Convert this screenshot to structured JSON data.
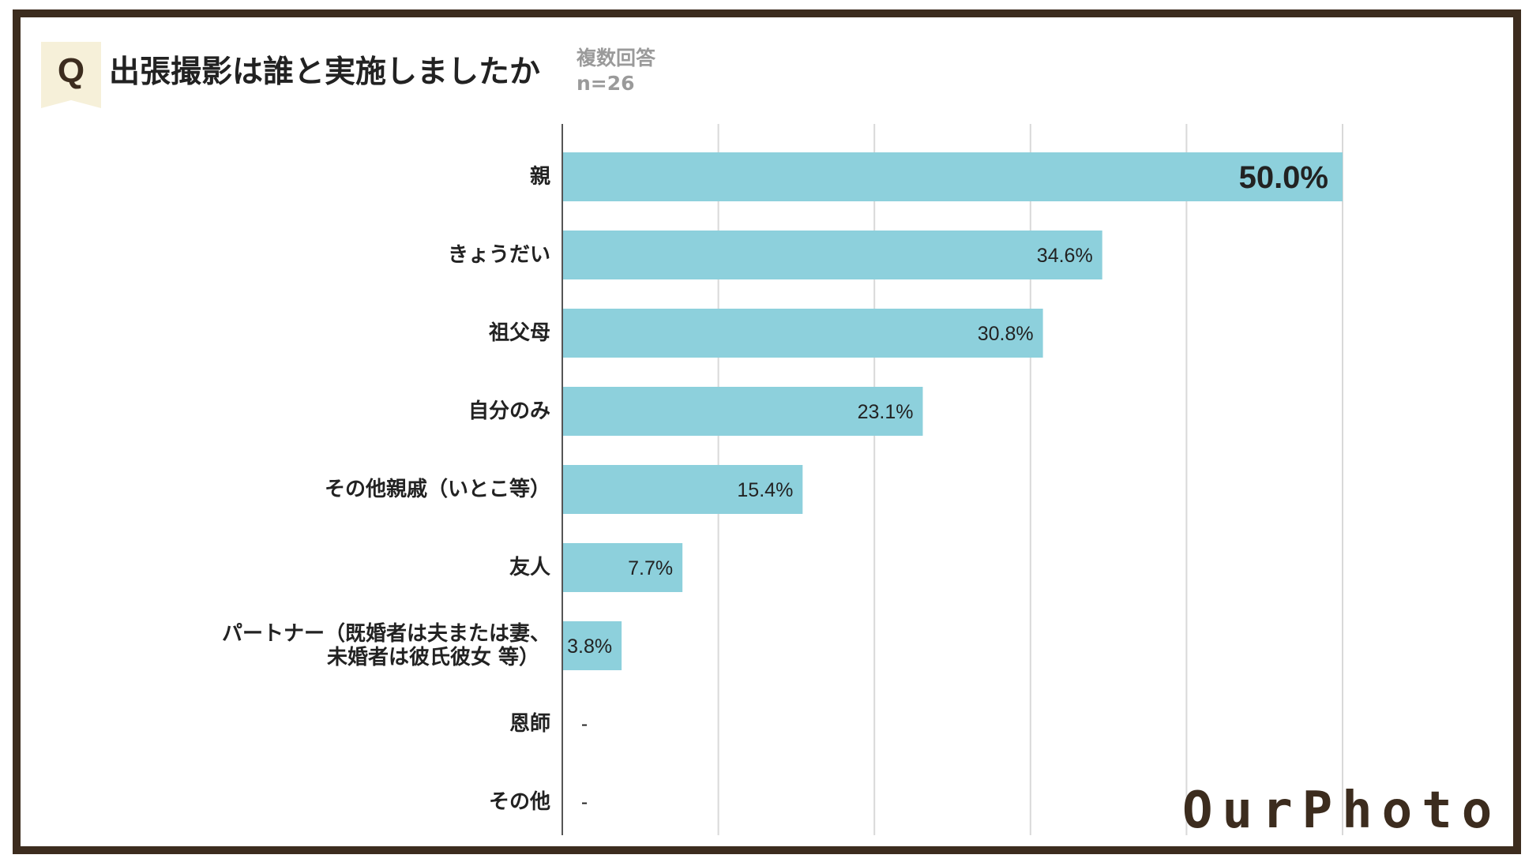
{
  "header": {
    "badge": "Q",
    "title": "出張撮影は誰と実施しましたか",
    "subtitle_line1": "複数回答",
    "subtitle_line2": "n=26"
  },
  "logo": "OurPhoto",
  "colors": {
    "bar": "#8dd0dc",
    "frame": "#3c2c1e",
    "grid": "#d9d9d9",
    "axis": "#555555"
  },
  "chart_data": {
    "type": "bar",
    "orientation": "horizontal",
    "title": "出張撮影は誰と実施しましたか",
    "xlim": [
      0,
      50
    ],
    "grid": true,
    "categories": [
      "親",
      "きょうだい",
      "祖父母",
      "自分のみ",
      "その他親戚（いとこ等）",
      "友人",
      "パートナー（既婚者は夫または妻、\n未婚者は彼氏彼女 等）",
      "恩師",
      "その他"
    ],
    "values": [
      50.0,
      34.6,
      30.8,
      23.1,
      15.4,
      7.7,
      3.8,
      null,
      null
    ],
    "value_labels": [
      "50.0%",
      "34.6%",
      "30.8%",
      "23.1%",
      "15.4%",
      "7.7%",
      "3.8%",
      "-",
      "-"
    ]
  }
}
